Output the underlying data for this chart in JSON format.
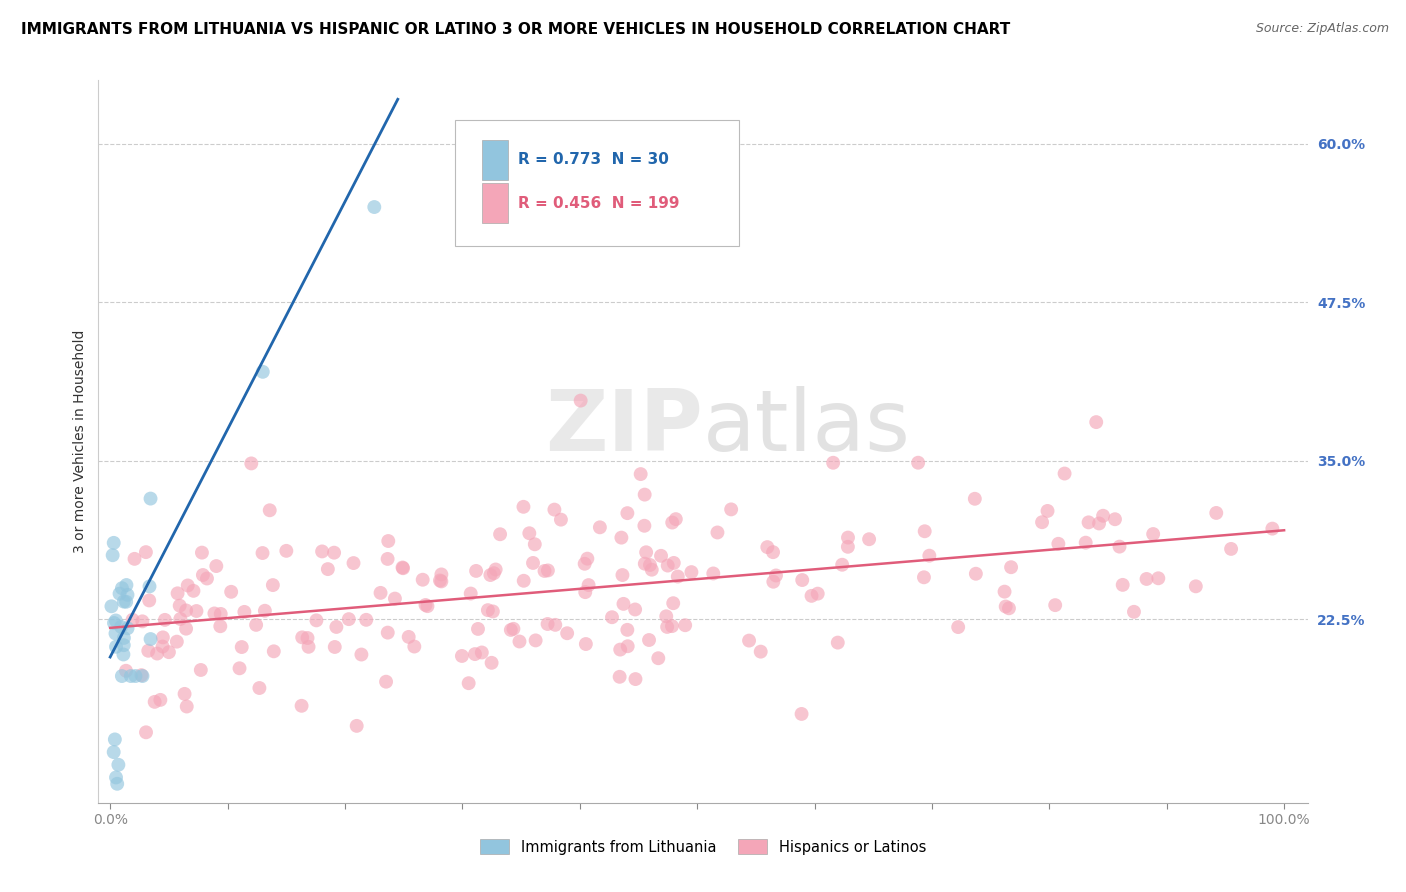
{
  "title": "IMMIGRANTS FROM LITHUANIA VS HISPANIC OR LATINO 3 OR MORE VEHICLES IN HOUSEHOLD CORRELATION CHART",
  "source": "Source: ZipAtlas.com",
  "ylabel": "3 or more Vehicles in Household",
  "xlim": [
    -0.01,
    1.02
  ],
  "ylim": [
    0.08,
    0.65
  ],
  "yticks": [
    0.225,
    0.35,
    0.475,
    0.6
  ],
  "ytick_labels": [
    "22.5%",
    "35.0%",
    "47.5%",
    "60.0%"
  ],
  "blue_R": 0.773,
  "blue_N": 30,
  "pink_R": 0.456,
  "pink_N": 199,
  "blue_color": "#92c5de",
  "pink_color": "#f4a6b8",
  "blue_line_color": "#2166ac",
  "pink_line_color": "#d6604d",
  "watermark": "ZIPatlas",
  "legend_label_blue": "Immigrants from Lithuania",
  "legend_label_pink": "Hispanics or Latinos",
  "title_fontsize": 11,
  "source_fontsize": 9,
  "ylabel_fontsize": 10,
  "tick_fontsize": 10,
  "ytick_color": "#4472C4"
}
